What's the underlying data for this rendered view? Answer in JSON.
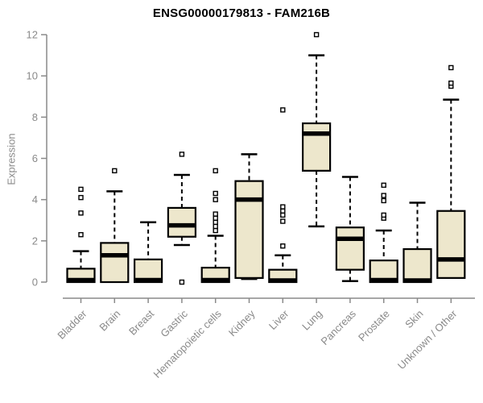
{
  "chart_data": {
    "type": "box",
    "title": "ENSG00000179813 - FAM216B",
    "ylabel": "Expression",
    "xlabel": "",
    "ylim": [
      0,
      12
    ],
    "yticks": [
      0,
      2,
      4,
      6,
      8,
      10,
      12
    ],
    "grid": false,
    "legend": "none",
    "colors": {
      "box_fill": "#EDE7CC",
      "box_stroke": "#000000",
      "median": "#000000",
      "whisker": "#000000",
      "outlier_fill": "#ffffff",
      "axis": "#8a8a8a",
      "tick_label": "#8a8a8a",
      "title": "#000000"
    },
    "categories": [
      "Bladder",
      "Brain",
      "Breast",
      "Gastric",
      "Hematopoietic cells",
      "Kidney",
      "Liver",
      "Lung",
      "Pancreas",
      "Prostate",
      "Skin",
      "Unknown / Other"
    ],
    "series": [
      {
        "name": "Bladder",
        "whisker_low": 0,
        "q1": 0,
        "median": 0.1,
        "q3": 0.65,
        "whisker_high": 1.5,
        "outliers": [
          2.3,
          3.35,
          4.1,
          4.5
        ]
      },
      {
        "name": "Brain",
        "whisker_low": 0,
        "q1": 0,
        "median": 1.3,
        "q3": 1.9,
        "whisker_high": 4.4,
        "outliers": [
          5.4
        ]
      },
      {
        "name": "Breast",
        "whisker_low": 0,
        "q1": 0,
        "median": 0.1,
        "q3": 1.1,
        "whisker_high": 2.9,
        "outliers": []
      },
      {
        "name": "Gastric",
        "whisker_low": 1.8,
        "q1": 2.2,
        "median": 2.75,
        "q3": 3.6,
        "whisker_high": 5.2,
        "outliers": [
          6.2,
          0
        ]
      },
      {
        "name": "Hematopoietic cells",
        "whisker_low": 0,
        "q1": 0,
        "median": 0.1,
        "q3": 0.7,
        "whisker_high": 2.25,
        "outliers": [
          2.5,
          2.7,
          2.9,
          3.1,
          3.3,
          4.0,
          4.3,
          5.4
        ]
      },
      {
        "name": "Kidney",
        "whisker_low": 0.15,
        "q1": 0.2,
        "median": 4.0,
        "q3": 4.9,
        "whisker_high": 6.2,
        "outliers": []
      },
      {
        "name": "Liver",
        "whisker_low": 0,
        "q1": 0,
        "median": 0.08,
        "q3": 0.6,
        "whisker_high": 1.3,
        "outliers": [
          1.75,
          2.95,
          3.25,
          3.45,
          3.65,
          8.35
        ]
      },
      {
        "name": "Lung",
        "whisker_low": 2.7,
        "q1": 5.4,
        "median": 7.2,
        "q3": 7.7,
        "whisker_high": 11.0,
        "outliers": [
          12.0
        ]
      },
      {
        "name": "Pancreas",
        "whisker_low": 0.05,
        "q1": 0.6,
        "median": 2.1,
        "q3": 2.65,
        "whisker_high": 5.1,
        "outliers": []
      },
      {
        "name": "Prostate",
        "whisker_low": 0,
        "q1": 0,
        "median": 0.1,
        "q3": 1.05,
        "whisker_high": 2.5,
        "outliers": [
          3.1,
          3.25,
          3.95,
          4.2,
          4.7
        ]
      },
      {
        "name": "Skin",
        "whisker_low": 0,
        "q1": 0,
        "median": 0.08,
        "q3": 1.6,
        "whisker_high": 3.85,
        "outliers": []
      },
      {
        "name": "Unknown / Other",
        "whisker_low": 0.2,
        "q1": 0.2,
        "median": 1.1,
        "q3": 3.45,
        "whisker_high": 8.85,
        "outliers": [
          9.5,
          9.65,
          10.4
        ]
      }
    ]
  }
}
